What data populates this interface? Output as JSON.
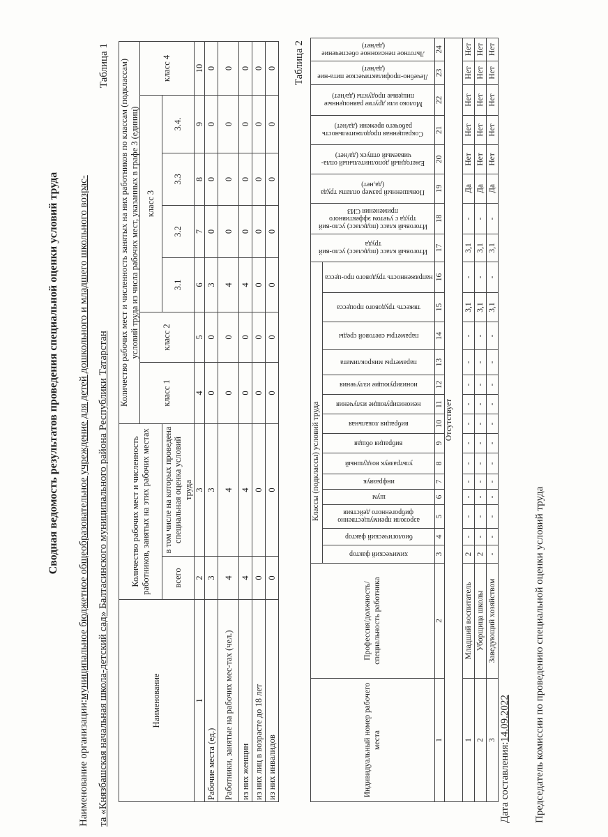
{
  "title": "Сводная ведомость результатов проведения специальной оценки условий труда",
  "organization": {
    "label": "Наименование организации:",
    "line1": "муниципальное бюджетное общеобразовательное учреждение для детей дошкольного и младшего школьного возрас-",
    "line2": "та «Князбашская начальная школа-детский сад» Балтасинского муниципального района Республики Татарстан"
  },
  "table1": {
    "caption": "Таблица 1",
    "headers": {
      "name": "Наименование",
      "workplaces": "Количество рабочих мест и численность работников, занятых на этих рабочих местах",
      "total": "всего",
      "assessed": "в том числе на которых проведена специальная оценка условий труда",
      "by_class": "Количество рабочих мест и численность занятых на них работников по классам (подклассам) условий труда из числа рабочих мест, указанных в графе 3 (единиц)",
      "class1": "класс 1",
      "class2": "класс 2",
      "class3": "класс 3",
      "class4": "класс 4",
      "sub": [
        "3.1",
        "3.2",
        "3.3",
        "3.4."
      ]
    },
    "numbers": [
      "1",
      "2",
      "3",
      "4",
      "5",
      "6",
      "7",
      "8",
      "9",
      "10"
    ],
    "rows": [
      {
        "name": "Рабочие места (ед.)",
        "values": [
          "3",
          "3",
          "0",
          "0",
          "3",
          "0",
          "0",
          "0",
          "0"
        ]
      },
      {
        "name": "Работники, занятые на рабочих мес-тах (чел.)",
        "values": [
          "4",
          "4",
          "0",
          "0",
          "4",
          "0",
          "0",
          "0",
          "0"
        ]
      },
      {
        "name": "из них женщин",
        "values": [
          "4",
          "4",
          "0",
          "0",
          "4",
          "0",
          "0",
          "0",
          "0"
        ]
      },
      {
        "name": "из них лиц в возрасте до 18 лет",
        "values": [
          "0",
          "0",
          "0",
          "0",
          "0",
          "0",
          "0",
          "0",
          "0"
        ]
      },
      {
        "name": "из них инвалидов",
        "values": [
          "0",
          "0",
          "0",
          "0",
          "0",
          "0",
          "0",
          "0",
          "0"
        ]
      }
    ]
  },
  "table2": {
    "caption": "Таблица 2",
    "headers": {
      "id": "Индивидуальный номер рабочего места",
      "profession": "Профессия/должность/специальность работника",
      "classes": "Классы (подклассы) условий труда",
      "factors": [
        "химический фактор",
        "биологический фактор",
        "аэрозоли преимущественно фиброгенного действия",
        "шум",
        "инфразвук",
        "ультразвук воздушный",
        "вибрация общая",
        "вибрация локальная",
        "неионизирующие излучения",
        "ионизирующие излучения",
        "параметры микроклимата",
        "параметры световой среды",
        "тяжесть трудового процесса",
        "напряженность трудового про-цесса"
      ],
      "extra": [
        "Итоговый класс (подкласс) усло-вий труда",
        "Итоговый класс (подкласс) усло-вий труда с учетом эффективного применения СИЗ",
        "Повышенный размер оплаты труда (да,нет)",
        "Ежегодный дополнительный опла-чиваемый отпуск (да/нет)",
        "Сокращенная продолжительность рабочего времени (да/нет)",
        "Молоко или другие равноценные пищевые продукты (да/нет)",
        "Лечебно-профилактическое пита-ние (да/нет)",
        "Льготное пенсионное обеспечение (да/нет)"
      ]
    },
    "numbers": [
      "1",
      "2",
      "3",
      "4",
      "5",
      "6",
      "7",
      "8",
      "9",
      "10",
      "11",
      "12",
      "13",
      "14",
      "15",
      "16",
      "17",
      "18",
      "19",
      "20",
      "21",
      "22",
      "23",
      "24"
    ],
    "absent": "Отсутствует",
    "rows": [
      {
        "id": "1",
        "profession": "Младший воспитатель",
        "values": [
          "2",
          "-",
          "-",
          "-",
          "-",
          "-",
          "-",
          "-",
          "-",
          "-",
          "-",
          "-",
          "3,1",
          "-",
          "3,1",
          "-",
          "Да",
          "Нет",
          "Нет",
          "Нет",
          "Нет",
          "Нет"
        ]
      },
      {
        "id": "2",
        "profession": "Уборщица школы",
        "values": [
          "2",
          "-",
          "-",
          "-",
          "-",
          "-",
          "-",
          "-",
          "-",
          "-",
          "-",
          "-",
          "3,1",
          "-",
          "3,1",
          "-",
          "Да",
          "Нет",
          "Нет",
          "Нет",
          "Нет",
          "Нет"
        ]
      },
      {
        "id": "3",
        "profession": "Заведующий хозяйством",
        "values": [
          "-",
          "-",
          "-",
          "-",
          "-",
          "-",
          "-",
          "-",
          "-",
          "-",
          "-",
          "-",
          "3,1",
          "-",
          "3,1",
          "-",
          "Да",
          "Нет",
          "Нет",
          "Нет",
          "Нет",
          "Нет"
        ]
      }
    ]
  },
  "footer": {
    "date_label": "Дата составления:",
    "date": "14.09.2022",
    "chairman": "Председатель комиссии по проведению специальной оценки условий труда"
  }
}
